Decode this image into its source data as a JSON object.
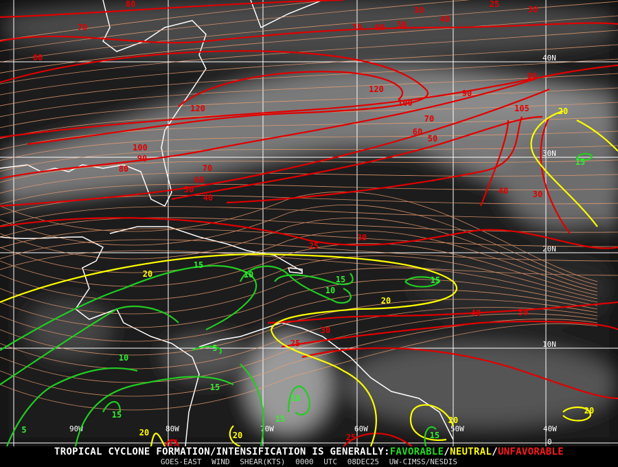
{
  "map": {
    "grid_labels": {
      "longitudes": [
        "90W",
        "80W",
        "70W",
        "60W",
        "50W",
        "40W"
      ],
      "latitudes": [
        "40N",
        "30N",
        "20N",
        "10N",
        "0"
      ]
    },
    "contour_colors": {
      "unfavorable": "#e00000",
      "neutral": "#ffff00",
      "favorable": "#22cc22",
      "streamline": "#f0a070",
      "coast": "#ffffff"
    },
    "contour_labels": {
      "red": [
        "70",
        "80",
        "80",
        "120",
        "120",
        "100",
        "90",
        "80",
        "105",
        "70",
        "60",
        "50",
        "100",
        "90",
        "80",
        "70",
        "60",
        "50",
        "40",
        "40",
        "30",
        "25",
        "30",
        "40",
        "50",
        "30",
        "25",
        "30",
        "25",
        "30",
        "70",
        "60",
        "50",
        "40",
        "25",
        "25"
      ],
      "yellow": [
        "20",
        "20",
        "20",
        "20",
        "20",
        "20",
        "20"
      ],
      "green": [
        "15",
        "10",
        "15",
        "10",
        "15",
        "10",
        "5",
        "15",
        "10",
        "15",
        "15",
        "15",
        "5",
        "15"
      ]
    }
  },
  "footer": {
    "headline_prefix": "TROPICAL CYCLONE FORMATION/INTENSIFICATION IS GENERALLY:",
    "favorable": "FAVORABLE",
    "neutral": "NEUTRAL",
    "unfavorable": "UNFAVORABLE",
    "sep": "/",
    "product": "GOES-EAST WIND SHEAR(KTS)",
    "time": "0000 UTC",
    "date": "08DEC25",
    "source": "UW-CIMSS/NESDIS"
  }
}
